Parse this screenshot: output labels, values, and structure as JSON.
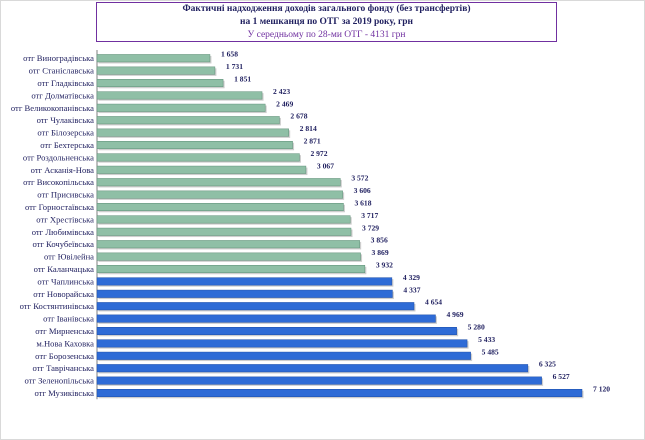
{
  "title": {
    "line1": "Фактичні надходження доходів загального фонду (без трансфертів)",
    "line2": "на 1 мешканця по ОТГ за 2019 року, грн",
    "line3": "У середньому по 28-ми ОТГ - 4131 грн"
  },
  "colors": {
    "below_avg": "#8fbfa6",
    "above_avg": "#2e6bd6"
  },
  "chart_data": {
    "type": "bar",
    "orientation": "horizontal",
    "title": "Фактичні надходження доходів загального фонду (без трансфертів) на 1 мешканця по ОТГ за 2019 року, грн",
    "subtitle": "У середньому по 28-ми ОТГ - 4131 грн",
    "categories": [
      "отг Виноградівська",
      "отг Станіславська",
      "отг Гладківська",
      "отг Долматівська",
      "отг Великокопанівська",
      "отг Чулаківська",
      "отг Білозерська",
      "отг Бехтерська",
      "отг Роздольненська",
      "отг Асканія-Нова",
      "отг Високопільська",
      "отг Присивська",
      "отг Горностаївська",
      "отг Хрестівська",
      "отг Любимівська",
      "отг Кочубеївська",
      "отг Ювілейна",
      "отг Каланчацька",
      "отг Чаплинська",
      "отг Новорайська",
      "отг Костянтинівська",
      "отг Іванівська",
      "отг Мирненська",
      "м.Нова Каховка",
      "отг Борозенська",
      "отг Таврічанська",
      "отг Зеленопільська",
      "отг Музиківська"
    ],
    "values": [
      1658,
      1731,
      1851,
      2423,
      2469,
      2678,
      2814,
      2871,
      2972,
      3067,
      3572,
      3606,
      3618,
      3717,
      3729,
      3856,
      3869,
      3932,
      4329,
      4337,
      4654,
      4969,
      5280,
      5433,
      5485,
      6325,
      6527,
      7120
    ],
    "labels": [
      "1 658",
      "1 731",
      "1 851",
      "2 423",
      "2 469",
      "2 678",
      "2 814",
      "2 871",
      "2 972",
      "3 067",
      "3 572",
      "3 606",
      "3 618",
      "3 717",
      "3 729",
      "3 856",
      "3 869",
      "3 932",
      "4 329",
      "4 337",
      "4 654",
      "4 969",
      "5 280",
      "5 433",
      "5 485",
      "6 325",
      "6 527",
      "7 120"
    ],
    "xlim": [
      0,
      7120
    ],
    "threshold": 4131,
    "grid": false,
    "legend": "none"
  }
}
